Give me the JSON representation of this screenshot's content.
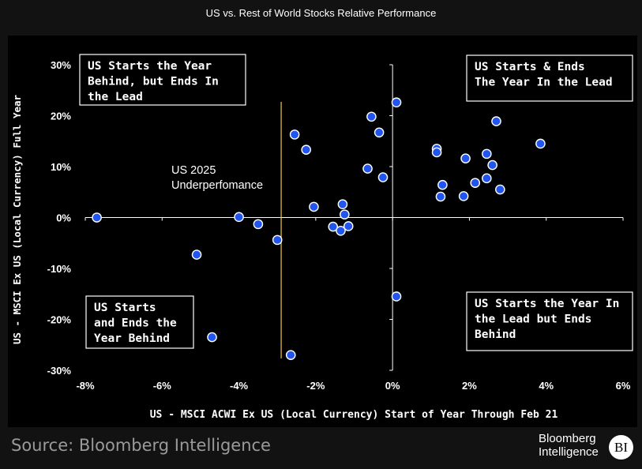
{
  "header": {
    "title": "US vs. Rest of World Stocks Relative Performance"
  },
  "footer": {
    "source": "Source: Bloomberg Intelligence",
    "brand_line1": "Bloomberg",
    "brand_line2": "Intelligence",
    "brand_mark": "BI"
  },
  "colors": {
    "background": "#000000",
    "point_fill": "#2255ee",
    "point_stroke": "#ffffff",
    "marker_line": "#e8c54a",
    "axis": "#ffffff"
  },
  "chart_data": {
    "type": "scatter",
    "title": "US vs. Rest of World Stocks Relative Performance",
    "xlabel": "US - MSCI ACWI Ex US (Local Currency) Start of Year Through Feb 21",
    "ylabel": "US - MSCI Ex US (Local Currency) Full Year",
    "xlim": [
      -8,
      6
    ],
    "ylim": [
      -30,
      30
    ],
    "xticks": [
      -8,
      -6,
      -4,
      -2,
      0,
      2,
      4,
      6
    ],
    "xtick_labels": [
      "-8%",
      "-6%",
      "-4%",
      "-2%",
      "0%",
      "2%",
      "4%",
      "6%"
    ],
    "yticks": [
      30,
      20,
      10,
      0,
      -10,
      -20,
      -30
    ],
    "ytick_labels": [
      "30%",
      "20%",
      "10%",
      "0%",
      "-10%",
      "-20%",
      "-30%"
    ],
    "grid": false,
    "points": [
      {
        "x": -7.7,
        "y": 0
      },
      {
        "x": -5.1,
        "y": -7.3
      },
      {
        "x": -4.7,
        "y": -23.5
      },
      {
        "x": -4.0,
        "y": 0.1
      },
      {
        "x": -3.5,
        "y": -1.3
      },
      {
        "x": -3.0,
        "y": -4.4
      },
      {
        "x": -2.65,
        "y": -27.0
      },
      {
        "x": -2.55,
        "y": 16.3
      },
      {
        "x": -2.25,
        "y": 13.3
      },
      {
        "x": -2.05,
        "y": 2.1
      },
      {
        "x": -1.55,
        "y": -1.8
      },
      {
        "x": -1.35,
        "y": -2.6
      },
      {
        "x": -1.3,
        "y": 2.6
      },
      {
        "x": -1.25,
        "y": 0.6
      },
      {
        "x": -1.15,
        "y": -1.7
      },
      {
        "x": -0.65,
        "y": 9.6
      },
      {
        "x": -0.55,
        "y": 19.8
      },
      {
        "x": -0.35,
        "y": 16.7
      },
      {
        "x": -0.25,
        "y": 7.9
      },
      {
        "x": 0.1,
        "y": 22.6
      },
      {
        "x": 0.1,
        "y": -15.5
      },
      {
        "x": 1.15,
        "y": 13.5
      },
      {
        "x": 1.15,
        "y": 12.8
      },
      {
        "x": 1.25,
        "y": 4.1
      },
      {
        "x": 1.3,
        "y": 6.4
      },
      {
        "x": 1.85,
        "y": 4.2
      },
      {
        "x": 1.9,
        "y": 11.6
      },
      {
        "x": 2.15,
        "y": 6.8
      },
      {
        "x": 2.45,
        "y": 12.5
      },
      {
        "x": 2.45,
        "y": 7.7
      },
      {
        "x": 2.6,
        "y": 10.3
      },
      {
        "x": 2.7,
        "y": 18.9
      },
      {
        "x": 2.8,
        "y": 5.5
      },
      {
        "x": 3.85,
        "y": 14.5
      }
    ],
    "reference_line": {
      "x": -2.9,
      "label_line1": "US 2025",
      "label_line2": "Underperfomance"
    },
    "annotations": {
      "top_left": [
        "US Starts the Year",
        "Behind, but Ends In",
        "the Lead"
      ],
      "top_right": [
        "US Starts & Ends",
        "The Year In the Lead"
      ],
      "bottom_left": [
        "US Starts",
        "and Ends the",
        "Year Behind"
      ],
      "bottom_right": [
        "US Starts the Year In",
        "the Lead but Ends",
        "Behind"
      ]
    }
  }
}
